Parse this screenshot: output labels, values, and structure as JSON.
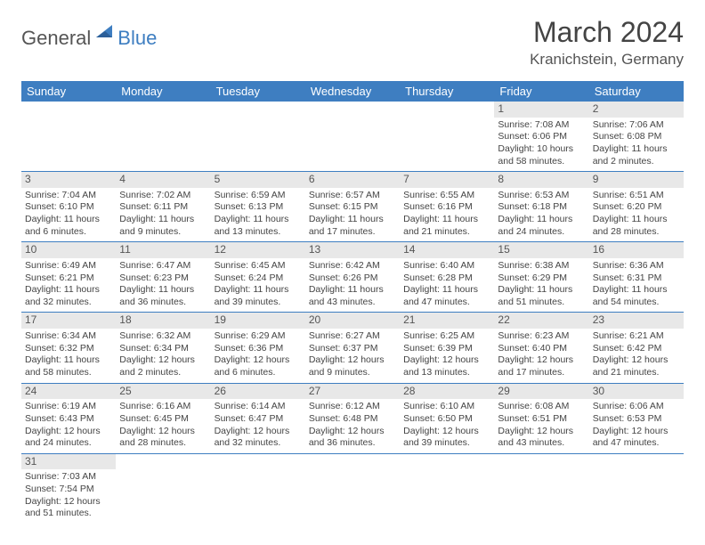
{
  "logo": {
    "text1": "General",
    "text2": "Blue"
  },
  "title": "March 2024",
  "location": "Kranichstein, Germany",
  "colors": {
    "header_bg": "#3e7ec1",
    "header_text": "#ffffff",
    "daynum_bg": "#e8e8e8",
    "row_border": "#3e7ec1",
    "text": "#444444",
    "background": "#ffffff"
  },
  "typography": {
    "title_fontsize": 32,
    "location_fontsize": 17,
    "weekday_fontsize": 13,
    "cell_fontsize": 10.5
  },
  "weekdays": [
    "Sunday",
    "Monday",
    "Tuesday",
    "Wednesday",
    "Thursday",
    "Friday",
    "Saturday"
  ],
  "weeks": [
    [
      null,
      null,
      null,
      null,
      null,
      {
        "day": "1",
        "sunrise": "Sunrise: 7:08 AM",
        "sunset": "Sunset: 6:06 PM",
        "daylight1": "Daylight: 10 hours",
        "daylight2": "and 58 minutes."
      },
      {
        "day": "2",
        "sunrise": "Sunrise: 7:06 AM",
        "sunset": "Sunset: 6:08 PM",
        "daylight1": "Daylight: 11 hours",
        "daylight2": "and 2 minutes."
      }
    ],
    [
      {
        "day": "3",
        "sunrise": "Sunrise: 7:04 AM",
        "sunset": "Sunset: 6:10 PM",
        "daylight1": "Daylight: 11 hours",
        "daylight2": "and 6 minutes."
      },
      {
        "day": "4",
        "sunrise": "Sunrise: 7:02 AM",
        "sunset": "Sunset: 6:11 PM",
        "daylight1": "Daylight: 11 hours",
        "daylight2": "and 9 minutes."
      },
      {
        "day": "5",
        "sunrise": "Sunrise: 6:59 AM",
        "sunset": "Sunset: 6:13 PM",
        "daylight1": "Daylight: 11 hours",
        "daylight2": "and 13 minutes."
      },
      {
        "day": "6",
        "sunrise": "Sunrise: 6:57 AM",
        "sunset": "Sunset: 6:15 PM",
        "daylight1": "Daylight: 11 hours",
        "daylight2": "and 17 minutes."
      },
      {
        "day": "7",
        "sunrise": "Sunrise: 6:55 AM",
        "sunset": "Sunset: 6:16 PM",
        "daylight1": "Daylight: 11 hours",
        "daylight2": "and 21 minutes."
      },
      {
        "day": "8",
        "sunrise": "Sunrise: 6:53 AM",
        "sunset": "Sunset: 6:18 PM",
        "daylight1": "Daylight: 11 hours",
        "daylight2": "and 24 minutes."
      },
      {
        "day": "9",
        "sunrise": "Sunrise: 6:51 AM",
        "sunset": "Sunset: 6:20 PM",
        "daylight1": "Daylight: 11 hours",
        "daylight2": "and 28 minutes."
      }
    ],
    [
      {
        "day": "10",
        "sunrise": "Sunrise: 6:49 AM",
        "sunset": "Sunset: 6:21 PM",
        "daylight1": "Daylight: 11 hours",
        "daylight2": "and 32 minutes."
      },
      {
        "day": "11",
        "sunrise": "Sunrise: 6:47 AM",
        "sunset": "Sunset: 6:23 PM",
        "daylight1": "Daylight: 11 hours",
        "daylight2": "and 36 minutes."
      },
      {
        "day": "12",
        "sunrise": "Sunrise: 6:45 AM",
        "sunset": "Sunset: 6:24 PM",
        "daylight1": "Daylight: 11 hours",
        "daylight2": "and 39 minutes."
      },
      {
        "day": "13",
        "sunrise": "Sunrise: 6:42 AM",
        "sunset": "Sunset: 6:26 PM",
        "daylight1": "Daylight: 11 hours",
        "daylight2": "and 43 minutes."
      },
      {
        "day": "14",
        "sunrise": "Sunrise: 6:40 AM",
        "sunset": "Sunset: 6:28 PM",
        "daylight1": "Daylight: 11 hours",
        "daylight2": "and 47 minutes."
      },
      {
        "day": "15",
        "sunrise": "Sunrise: 6:38 AM",
        "sunset": "Sunset: 6:29 PM",
        "daylight1": "Daylight: 11 hours",
        "daylight2": "and 51 minutes."
      },
      {
        "day": "16",
        "sunrise": "Sunrise: 6:36 AM",
        "sunset": "Sunset: 6:31 PM",
        "daylight1": "Daylight: 11 hours",
        "daylight2": "and 54 minutes."
      }
    ],
    [
      {
        "day": "17",
        "sunrise": "Sunrise: 6:34 AM",
        "sunset": "Sunset: 6:32 PM",
        "daylight1": "Daylight: 11 hours",
        "daylight2": "and 58 minutes."
      },
      {
        "day": "18",
        "sunrise": "Sunrise: 6:32 AM",
        "sunset": "Sunset: 6:34 PM",
        "daylight1": "Daylight: 12 hours",
        "daylight2": "and 2 minutes."
      },
      {
        "day": "19",
        "sunrise": "Sunrise: 6:29 AM",
        "sunset": "Sunset: 6:36 PM",
        "daylight1": "Daylight: 12 hours",
        "daylight2": "and 6 minutes."
      },
      {
        "day": "20",
        "sunrise": "Sunrise: 6:27 AM",
        "sunset": "Sunset: 6:37 PM",
        "daylight1": "Daylight: 12 hours",
        "daylight2": "and 9 minutes."
      },
      {
        "day": "21",
        "sunrise": "Sunrise: 6:25 AM",
        "sunset": "Sunset: 6:39 PM",
        "daylight1": "Daylight: 12 hours",
        "daylight2": "and 13 minutes."
      },
      {
        "day": "22",
        "sunrise": "Sunrise: 6:23 AM",
        "sunset": "Sunset: 6:40 PM",
        "daylight1": "Daylight: 12 hours",
        "daylight2": "and 17 minutes."
      },
      {
        "day": "23",
        "sunrise": "Sunrise: 6:21 AM",
        "sunset": "Sunset: 6:42 PM",
        "daylight1": "Daylight: 12 hours",
        "daylight2": "and 21 minutes."
      }
    ],
    [
      {
        "day": "24",
        "sunrise": "Sunrise: 6:19 AM",
        "sunset": "Sunset: 6:43 PM",
        "daylight1": "Daylight: 12 hours",
        "daylight2": "and 24 minutes."
      },
      {
        "day": "25",
        "sunrise": "Sunrise: 6:16 AM",
        "sunset": "Sunset: 6:45 PM",
        "daylight1": "Daylight: 12 hours",
        "daylight2": "and 28 minutes."
      },
      {
        "day": "26",
        "sunrise": "Sunrise: 6:14 AM",
        "sunset": "Sunset: 6:47 PM",
        "daylight1": "Daylight: 12 hours",
        "daylight2": "and 32 minutes."
      },
      {
        "day": "27",
        "sunrise": "Sunrise: 6:12 AM",
        "sunset": "Sunset: 6:48 PM",
        "daylight1": "Daylight: 12 hours",
        "daylight2": "and 36 minutes."
      },
      {
        "day": "28",
        "sunrise": "Sunrise: 6:10 AM",
        "sunset": "Sunset: 6:50 PM",
        "daylight1": "Daylight: 12 hours",
        "daylight2": "and 39 minutes."
      },
      {
        "day": "29",
        "sunrise": "Sunrise: 6:08 AM",
        "sunset": "Sunset: 6:51 PM",
        "daylight1": "Daylight: 12 hours",
        "daylight2": "and 43 minutes."
      },
      {
        "day": "30",
        "sunrise": "Sunrise: 6:06 AM",
        "sunset": "Sunset: 6:53 PM",
        "daylight1": "Daylight: 12 hours",
        "daylight2": "and 47 minutes."
      }
    ],
    [
      {
        "day": "31",
        "sunrise": "Sunrise: 7:03 AM",
        "sunset": "Sunset: 7:54 PM",
        "daylight1": "Daylight: 12 hours",
        "daylight2": "and 51 minutes."
      },
      null,
      null,
      null,
      null,
      null,
      null
    ]
  ]
}
